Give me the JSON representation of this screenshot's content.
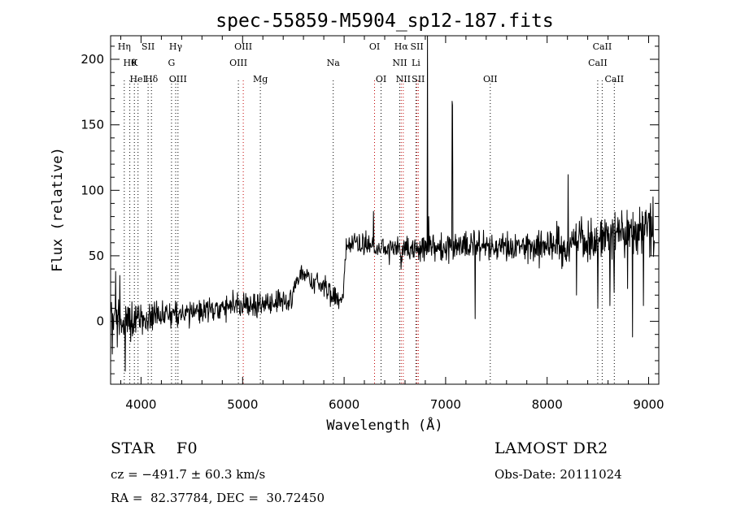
{
  "chart_data": {
    "type": "line",
    "title": "spec-55859-M5904_sp12-187.fits",
    "xlabel": "Wavelength (Å)",
    "ylabel": "Flux (relative)",
    "xlim": [
      3700,
      9100
    ],
    "ylim": [
      -48,
      218
    ],
    "xticks": [
      4000,
      5000,
      6000,
      7000,
      8000,
      9000
    ],
    "yticks": [
      0,
      50,
      100,
      150,
      200
    ],
    "grid": false,
    "series": [
      {
        "anchors": [
          [
            3700,
            5
          ],
          [
            3760,
            0
          ],
          [
            3850,
            3
          ],
          [
            3900,
            0
          ],
          [
            4000,
            2
          ],
          [
            4100,
            4
          ],
          [
            4200,
            5
          ],
          [
            4400,
            6
          ],
          [
            4600,
            8
          ],
          [
            4800,
            10
          ],
          [
            5000,
            12
          ],
          [
            5200,
            14
          ],
          [
            5400,
            17
          ],
          [
            5480,
            18
          ],
          [
            5550,
            34
          ],
          [
            5650,
            33
          ],
          [
            5750,
            30
          ],
          [
            5850,
            22
          ],
          [
            5960,
            17
          ],
          [
            5990,
            22
          ],
          [
            6020,
            56
          ],
          [
            6100,
            60
          ],
          [
            6200,
            57
          ],
          [
            6400,
            56
          ],
          [
            6600,
            55
          ],
          [
            6800,
            56
          ],
          [
            7000,
            57
          ],
          [
            7200,
            58
          ],
          [
            7400,
            58
          ],
          [
            7600,
            57
          ],
          [
            7800,
            57
          ],
          [
            8000,
            56
          ],
          [
            8200,
            57
          ],
          [
            8400,
            61
          ],
          [
            8600,
            64
          ],
          [
            8800,
            66
          ],
          [
            9000,
            70
          ],
          [
            9060,
            72
          ]
        ],
        "spikes": [
          [
            3715,
            -25
          ],
          [
            3750,
            38
          ],
          [
            3790,
            35
          ],
          [
            3845,
            -38
          ],
          [
            6290,
            84
          ],
          [
            6560,
            40
          ],
          [
            6820,
            235
          ],
          [
            6835,
            80
          ],
          [
            6845,
            65
          ],
          [
            7065,
            168
          ],
          [
            7070,
            165
          ],
          [
            7290,
            2
          ],
          [
            8205,
            112
          ],
          [
            8290,
            20
          ],
          [
            8500,
            10
          ],
          [
            8620,
            12
          ],
          [
            8660,
            22
          ],
          [
            8790,
            25
          ],
          [
            8840,
            -12
          ],
          [
            8950,
            12
          ],
          [
            9020,
            90
          ],
          [
            9045,
            95
          ]
        ],
        "noise_amplitude": [
          [
            3700,
            14
          ],
          [
            4200,
            7
          ],
          [
            6000,
            7
          ],
          [
            7700,
            8
          ],
          [
            8300,
            14
          ],
          [
            9060,
            18
          ]
        ]
      }
    ],
    "lines": [
      {
        "wl": 3835,
        "label": "Hη",
        "row": 0,
        "color": "#000000"
      },
      {
        "wl": 3889,
        "label": "Hθ",
        "row": 1,
        "color": "#000000"
      },
      {
        "wl": 3934,
        "label": "K",
        "row": 1,
        "color": "#000000"
      },
      {
        "wl": 3970,
        "label": "HeI",
        "row": 2,
        "color": "#000000"
      },
      {
        "wl": 4069,
        "label": "SII",
        "row": 0,
        "color": "#000000"
      },
      {
        "wl": 4102,
        "label": "Hδ",
        "row": 2,
        "color": "#000000"
      },
      {
        "wl": 4300,
        "label": "G",
        "row": 1,
        "color": "#000000"
      },
      {
        "wl": 4341,
        "label": "Hγ",
        "row": 0,
        "color": "#000000"
      },
      {
        "wl": 4363,
        "label": "OIII",
        "row": 2,
        "color": "#000000"
      },
      {
        "wl": 4959,
        "label": "OIII",
        "row": 1,
        "color": "#000000"
      },
      {
        "wl": 5007,
        "label": "OIII",
        "row": 0,
        "color": "#c00000"
      },
      {
        "wl": 5175,
        "label": "Mg",
        "row": 2,
        "color": "#000000"
      },
      {
        "wl": 5893,
        "label": "Na",
        "row": 1,
        "color": "#000000"
      },
      {
        "wl": 6300,
        "label": "OI",
        "row": 0,
        "color": "#c00000"
      },
      {
        "wl": 6364,
        "label": "OI",
        "row": 2,
        "color": "#000000"
      },
      {
        "wl": 6548,
        "label": "NII",
        "row": 1,
        "color": "#000000"
      },
      {
        "wl": 6563,
        "label": "Hα",
        "row": 0,
        "color": "#c00000"
      },
      {
        "wl": 6583,
        "label": "NII",
        "row": 2,
        "color": "#c00000"
      },
      {
        "wl": 6708,
        "label": "Li",
        "row": 1,
        "color": "#000000"
      },
      {
        "wl": 6717,
        "label": "SII",
        "row": 0,
        "color": "#c00000"
      },
      {
        "wl": 6731,
        "label": "SII",
        "row": 2,
        "color": "#c00000"
      },
      {
        "wl": 7440,
        "label": "OII",
        "row": 2,
        "color": "#000000"
      },
      {
        "wl": 8498,
        "label": "CaII",
        "row": 1,
        "color": "#000000"
      },
      {
        "wl": 8542,
        "label": "CaII",
        "row": 0,
        "color": "#000000"
      },
      {
        "wl": 8662,
        "label": "CaII",
        "row": 2,
        "color": "#000000"
      }
    ]
  },
  "info": {
    "class": "STAR    F0",
    "survey": "LAMOST DR2",
    "cz": "cz = −491.7 ± 60.3 km/s",
    "obs_date": "Obs-Date: 20111024",
    "coords": "RA =  82.37784, DEC =  30.72450"
  }
}
